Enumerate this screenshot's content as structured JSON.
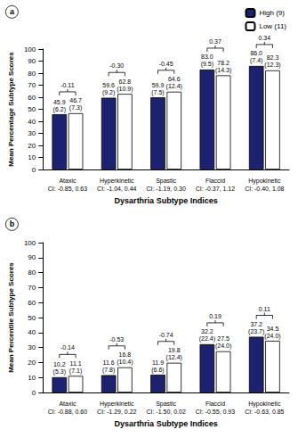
{
  "chart_data": [
    {
      "type": "bar",
      "panel": "a",
      "categories": [
        "Ataxic",
        "Hyperkinetic",
        "Spastic",
        "Flaccid",
        "Hypokinetic"
      ],
      "ci_labels": [
        "CI: -0.85, 0.63",
        "CI: -1.04, 0.44",
        "CI: -1.19, 0.30",
        "CI: -0.37, 1.12",
        "CI: -0.40, 1.08"
      ],
      "effect_sizes": [
        -0.11,
        -0.3,
        -0.45,
        0.37,
        0.34
      ],
      "series": [
        {
          "name": "High (9)",
          "color": "#1c2270",
          "values": [
            45.9,
            59.6,
            59.9,
            83.0,
            86.0
          ],
          "value_labels": [
            "45.9",
            "59.6",
            "59.9",
            "83.0",
            "86.0"
          ],
          "sd": [
            6.2,
            9.2,
            7.5,
            9.5,
            7.4
          ]
        },
        {
          "name": "Low (11)",
          "color": "#ffffff",
          "values": [
            46.7,
            62.8,
            64.6,
            78.2,
            82.3
          ],
          "value_labels": [
            "46.7",
            "62.8",
            "64.6",
            "78.2",
            "82.3"
          ],
          "sd": [
            7.3,
            10.9,
            12.4,
            14.3,
            12.3
          ]
        }
      ],
      "x_label": "Dysarthria Subtype Indices",
      "y_label": "Mean Percentage Subtype Scores",
      "ylim": [
        0,
        100
      ],
      "yticks": [
        0,
        10,
        20,
        30,
        40,
        50,
        60,
        70,
        80,
        90,
        100
      ],
      "grid": false,
      "data_labels": true,
      "legend": "top-right"
    },
    {
      "type": "bar",
      "panel": "b",
      "categories": [
        "Ataxic",
        "Hyperkinetic",
        "Spastic",
        "Flaccid",
        "Hypokinetic"
      ],
      "ci_labels": [
        "CI: -0.88, 0.60",
        "CI: -1.29, 0.22",
        "CI: -1.50, 0.02",
        "CI: -0.55, 0.93",
        "CI: -0.63, 0.85"
      ],
      "effect_sizes": [
        -0.14,
        -0.53,
        -0.74,
        0.19,
        0.11
      ],
      "series": [
        {
          "name": "High (9)",
          "color": "#1c2270",
          "values": [
            10.2,
            11.6,
            11.9,
            32.2,
            37.2
          ],
          "value_labels": [
            "10.2",
            "11.6",
            "11.9",
            "32.2",
            "37.2"
          ],
          "sd": [
            5.3,
            7.8,
            6.6,
            22.4,
            23.7
          ]
        },
        {
          "name": "Low (11)",
          "color": "#ffffff",
          "values": [
            11.1,
            16.8,
            19.8,
            27.5,
            34.5
          ],
          "value_labels": [
            "11.1",
            "16.8",
            "19.8",
            "27.5",
            "34.5"
          ],
          "sd": [
            7.1,
            10.4,
            12.4,
            24.0,
            24.0
          ]
        }
      ],
      "x_label": "Dysarthria Subtype Indices",
      "y_label": "Mean Percentile Subtype Scores",
      "ylim": [
        0,
        100
      ],
      "yticks": [
        0,
        10,
        20,
        30,
        40,
        50,
        60,
        70,
        80,
        90,
        100
      ],
      "grid": false,
      "data_labels": true
    }
  ]
}
